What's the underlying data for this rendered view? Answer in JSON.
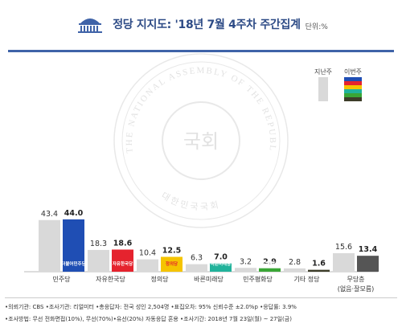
{
  "header": {
    "title": "정당 지지도: '18년 7월 4주차 주간집계",
    "unit": "단위:%"
  },
  "legend": {
    "last_week": "지난주",
    "this_week": "이번주"
  },
  "watermark": {
    "seal_text": "THE NATIONAL ASSEMBLY OF THE REPUBLIC OF KOREA",
    "center_text": "국회",
    "bottom_text": "대한민국국회"
  },
  "chart_data": {
    "type": "bar",
    "categories": [
      "민주당",
      "자유한국당",
      "정의당",
      "바른미래당",
      "민주평화당",
      "기타 정당",
      "무당층"
    ],
    "category_note": "(없음·잘모름)",
    "series": [
      {
        "name": "지난주",
        "values": [
          43.4,
          18.3,
          10.4,
          6.3,
          3.2,
          2.8,
          15.6
        ]
      },
      {
        "name": "이번주",
        "values": [
          44.0,
          18.6,
          12.5,
          7.0,
          2.9,
          1.6,
          13.4
        ]
      }
    ],
    "this_week_colors": [
      "#1f4eb4",
      "#e5232e",
      "#f5c400",
      "#21b39b",
      "#3aa636",
      "#3d3d29",
      "#555555"
    ],
    "last_week_color": "#d9d9d9",
    "bar_logos": [
      "더불어민주당",
      "자유한국당",
      "정의당",
      "바른미래당",
      "민주평화당"
    ],
    "ylim": [
      0,
      50
    ]
  },
  "notes": {
    "line1": "•의뢰기관: CBS •조사기관: 리얼미터 •총응답자: 전국 성인 2,504명 •표집오차: 95% 신뢰수준 ±2.0%p •응답률: 3.9%",
    "line2": "•조사방법: 무선 전화면접(10%), 무선(70%)•유선(20%) 자동응답 혼용 •조사기간: 2018년 7월 23일(월) ~ 27일(금)"
  }
}
